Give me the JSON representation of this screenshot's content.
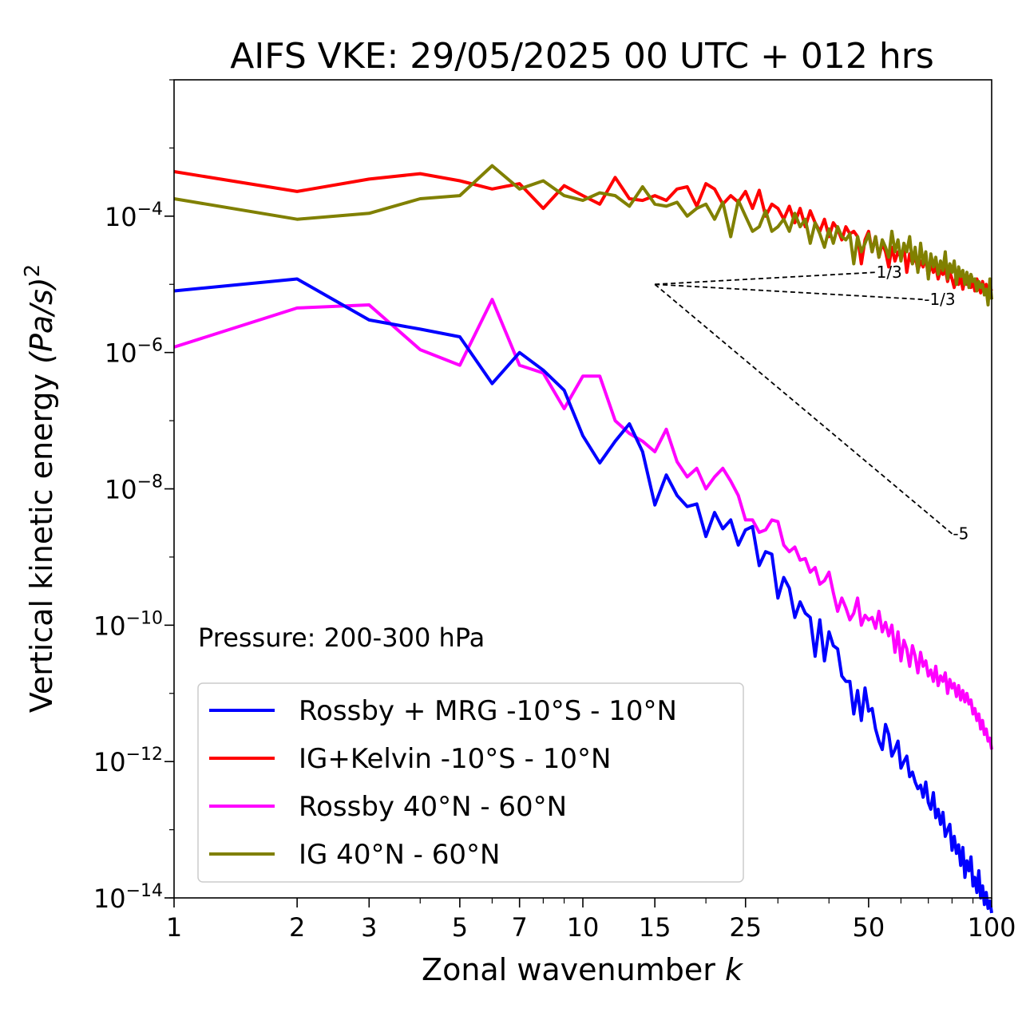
{
  "chart_data": {
    "type": "line",
    "title": "AIFS VKE: 29/05/2025 00 UTC + 012 hrs",
    "xlabel": "Zonal wavenumber",
    "xlabel_var": "k",
    "ylabel": "Vertical kinetic energy",
    "ylabel_unit": "(Pa/s)",
    "ylabel_sup": "2",
    "x_scale": "log",
    "y_scale": "log",
    "xlim": [
      1,
      100
    ],
    "ylim": [
      1e-14,
      0.01
    ],
    "x_ticks": [
      1,
      2,
      3,
      5,
      7,
      10,
      15,
      25,
      50,
      100
    ],
    "x_tick_labels": [
      "1",
      "2",
      "3",
      "5",
      "7",
      "10",
      "15",
      "25",
      "50",
      "100"
    ],
    "y_ticks": [
      1e-14,
      1e-12,
      1e-10,
      1e-08,
      1e-06,
      0.0001
    ],
    "y_tick_exponents": [
      "−14",
      "−12",
      "−10",
      "−8",
      "−6",
      "−4"
    ],
    "y_tick_base": "10",
    "annotation": "Pressure: 200-300 hPa",
    "legend_position": "lower-left",
    "series": [
      {
        "name": "Rossby + MRG -10°S - 10°N",
        "color": "#0000ff",
        "x": [
          1,
          2,
          3,
          4,
          5,
          6,
          7,
          8,
          9,
          10,
          11,
          12,
          13,
          14,
          15,
          16,
          17,
          18,
          19,
          20,
          21,
          22,
          23,
          24,
          25,
          26,
          27,
          28,
          29,
          30,
          31,
          32,
          33,
          34,
          35,
          36,
          37,
          38,
          39,
          40,
          41,
          42,
          43,
          44,
          45,
          46,
          47,
          48,
          49,
          50,
          51,
          52,
          53,
          54,
          55,
          56,
          57,
          58,
          59,
          60,
          61,
          62,
          63,
          64,
          65,
          66,
          67,
          68,
          69,
          70,
          71,
          72,
          73,
          74,
          75,
          76,
          77,
          78,
          79,
          80,
          81,
          82,
          83,
          84,
          85,
          86,
          87,
          88,
          89,
          90,
          91,
          92,
          93,
          94,
          95,
          96,
          97,
          98,
          99,
          100
        ],
        "values": [
          8e-06,
          1.2e-05,
          3e-06,
          2.2e-06,
          1.7e-06,
          3.5e-07,
          1e-06,
          5.5e-07,
          2.8e-07,
          6e-08,
          2.4e-08,
          5e-08,
          9e-08,
          3.5e-08,
          5.8e-09,
          1.6e-08,
          8e-09,
          5.5e-09,
          6e-09,
          2e-09,
          4.5e-09,
          2.6e-09,
          3.5e-09,
          1.5e-09,
          2.5e-09,
          2.8e-09,
          7.5e-10,
          1.2e-09,
          1.1e-09,
          2.5e-10,
          5e-10,
          3.5e-10,
          1.3e-10,
          2.2e-10,
          1.5e-10,
          1.3e-10,
          3.5e-11,
          1.2e-10,
          3e-11,
          8e-11,
          5e-11,
          4.5e-11,
          1.8e-11,
          1.5e-11,
          1.5e-11,
          5e-12,
          1.1e-11,
          4e-12,
          1.2e-11,
          5.5e-12,
          6e-12,
          3e-12,
          2e-12,
          1.5e-12,
          3.5e-12,
          2.5e-12,
          1.2e-12,
          1.5e-12,
          2e-12,
          8e-13,
          1e-12,
          1.2e-12,
          6e-13,
          7e-13,
          5e-13,
          4e-13,
          4.5e-13,
          3e-13,
          5e-13,
          2.5e-13,
          2e-13,
          3.5e-13,
          1.5e-13,
          2e-13,
          1.2e-13,
          1.8e-13,
          8e-14,
          1e-13,
          1.2e-13,
          5e-14,
          8e-14,
          4.5e-14,
          6e-14,
          3e-14,
          5.5e-14,
          2e-14,
          3.5e-14,
          2.5e-14,
          4e-14,
          1.5e-14,
          2e-14,
          1.2e-14,
          2.5e-14,
          1e-14,
          1.5e-14,
          8e-15,
          1.2e-14,
          7e-15,
          9e-15,
          6e-15
        ]
      },
      {
        "name": "IG+Kelvin -10°S - 10°N",
        "color": "#ff0000",
        "x": [
          1,
          2,
          3,
          4,
          5,
          6,
          7,
          8,
          9,
          10,
          11,
          12,
          13,
          14,
          15,
          16,
          17,
          18,
          19,
          20,
          21,
          22,
          23,
          24,
          25,
          26,
          27,
          28,
          29,
          30,
          31,
          32,
          33,
          34,
          35,
          36,
          37,
          38,
          39,
          40,
          41,
          42,
          43,
          44,
          45,
          46,
          47,
          48,
          49,
          50,
          51,
          52,
          53,
          54,
          55,
          56,
          57,
          58,
          59,
          60,
          61,
          62,
          63,
          64,
          65,
          66,
          67,
          68,
          69,
          70,
          71,
          72,
          73,
          74,
          75,
          76,
          77,
          78,
          79,
          80,
          81,
          82,
          83,
          84,
          85,
          86,
          87,
          88,
          89,
          90,
          91,
          92,
          93,
          94,
          95,
          96,
          97,
          98,
          99,
          100
        ],
        "values": [
          0.00045,
          0.00023,
          0.00035,
          0.00042,
          0.00033,
          0.00025,
          0.0003,
          0.00013,
          0.00028,
          0.0002,
          0.00015,
          0.00037,
          0.00018,
          0.00017,
          0.0002,
          0.00017,
          0.00025,
          0.00027,
          0.00014,
          0.0003,
          0.00025,
          0.00015,
          0.0002,
          0.00016,
          0.00023,
          0.00013,
          0.00024,
          0.0001,
          0.00015,
          0.00013,
          9e-05,
          0.00014,
          8e-05,
          0.00013,
          7e-05,
          0.00012,
          8e-05,
          6e-05,
          9e-05,
          5e-05,
          8e-05,
          6.5e-05,
          4.5e-05,
          7e-05,
          5.5e-05,
          6e-05,
          5e-05,
          2e-05,
          4.5e-05,
          6e-05,
          3e-05,
          5e-05,
          2.5e-05,
          4e-05,
          3e-05,
          1.8e-05,
          3.5e-05,
          2.2e-05,
          3e-05,
          2.5e-05,
          3.5e-05,
          1.5e-05,
          2.8e-05,
          2e-05,
          2.6e-05,
          1.6e-05,
          2.2e-05,
          1.8e-05,
          2.5e-05,
          1.3e-05,
          2e-05,
          1.5e-05,
          1.8e-05,
          1.2e-05,
          1.6e-05,
          1.4e-05,
          1.7e-05,
          1.1e-05,
          1.5e-05,
          1.2e-05,
          9e-06,
          1.4e-05,
          1e-05,
          1.3e-05,
          8.5e-06,
          1.2e-05,
          1e-05,
          1.3e-05,
          9e-06,
          1.1e-05,
          8e-06,
          1.2e-05,
          9.5e-06,
          7.5e-06,
          1.1e-05,
          8e-06,
          1e-05,
          7e-06,
          9e-06,
          8e-06
        ]
      },
      {
        "name": "Rossby 40°N - 60°N",
        "color": "#ff00ff",
        "x": [
          1,
          2,
          3,
          4,
          5,
          6,
          7,
          8,
          9,
          10,
          11,
          12,
          13,
          14,
          15,
          16,
          17,
          18,
          19,
          20,
          21,
          22,
          23,
          24,
          25,
          26,
          27,
          28,
          29,
          30,
          31,
          32,
          33,
          34,
          35,
          36,
          37,
          38,
          39,
          40,
          41,
          42,
          43,
          44,
          45,
          46,
          47,
          48,
          49,
          50,
          51,
          52,
          53,
          54,
          55,
          56,
          57,
          58,
          59,
          60,
          61,
          62,
          63,
          64,
          65,
          66,
          67,
          68,
          69,
          70,
          71,
          72,
          73,
          74,
          75,
          76,
          77,
          78,
          79,
          80,
          81,
          82,
          83,
          84,
          85,
          86,
          87,
          88,
          89,
          90,
          91,
          92,
          93,
          94,
          95,
          96,
          97,
          98,
          99,
          100
        ],
        "values": [
          1.2e-06,
          4.5e-06,
          5e-06,
          1.1e-06,
          6.5e-07,
          6e-06,
          6.5e-07,
          5e-07,
          1.5e-07,
          4.5e-07,
          4.5e-07,
          1e-07,
          6.5e-08,
          5e-08,
          3.5e-08,
          7.5e-08,
          2.5e-08,
          1.5e-08,
          2e-08,
          1e-08,
          1.5e-08,
          2e-08,
          1.3e-08,
          8e-09,
          3.5e-09,
          3.5e-09,
          2.3e-09,
          2.5e-09,
          3.5e-09,
          3.3e-09,
          1.5e-09,
          1.2e-09,
          1.4e-09,
          9e-10,
          9.5e-10,
          6e-10,
          7e-10,
          4e-10,
          4.5e-10,
          6e-10,
          3e-10,
          1.6e-10,
          2.5e-10,
          1.8e-10,
          1.2e-10,
          1.5e-10,
          2.5e-10,
          1e-10,
          1.4e-10,
          1.2e-10,
          1.3e-10,
          9e-11,
          1.6e-10,
          8e-11,
          1.1e-10,
          7e-11,
          1e-10,
          4e-11,
          8e-11,
          3e-11,
          6e-11,
          4.5e-11,
          2.5e-11,
          5e-11,
          3.5e-11,
          2e-11,
          4e-11,
          2.5e-11,
          3e-11,
          1.8e-11,
          2.2e-11,
          1.5e-11,
          2.5e-11,
          1.3e-11,
          1.8e-11,
          1.5e-11,
          2e-11,
          1e-11,
          1.6e-11,
          1.2e-11,
          1.4e-11,
          9e-12,
          1.3e-11,
          8e-12,
          1.1e-11,
          7.5e-12,
          1e-11,
          7e-12,
          8e-12,
          5e-12,
          6e-12,
          4e-12,
          5e-12,
          3e-12,
          4e-12,
          2.5e-12,
          3e-12,
          2e-12,
          2.2e-12,
          1.5e-12
        ]
      },
      {
        "name": "IG 40°N - 60°N",
        "color": "#808000",
        "x": [
          1,
          2,
          3,
          4,
          5,
          6,
          7,
          8,
          9,
          10,
          11,
          12,
          13,
          14,
          15,
          16,
          17,
          18,
          19,
          20,
          21,
          22,
          23,
          24,
          25,
          26,
          27,
          28,
          29,
          30,
          31,
          32,
          33,
          34,
          35,
          36,
          37,
          38,
          39,
          40,
          41,
          42,
          43,
          44,
          45,
          46,
          47,
          48,
          49,
          50,
          51,
          52,
          53,
          54,
          55,
          56,
          57,
          58,
          59,
          60,
          61,
          62,
          63,
          64,
          65,
          66,
          67,
          68,
          69,
          70,
          71,
          72,
          73,
          74,
          75,
          76,
          77,
          78,
          79,
          80,
          81,
          82,
          83,
          84,
          85,
          86,
          87,
          88,
          89,
          90,
          91,
          92,
          93,
          94,
          95,
          96,
          97,
          98,
          99,
          100
        ],
        "values": [
          0.00018,
          9e-05,
          0.00011,
          0.00018,
          0.0002,
          0.00055,
          0.00025,
          0.00033,
          0.0002,
          0.00017,
          0.00022,
          0.0002,
          0.00014,
          0.00027,
          0.00015,
          0.00014,
          0.00016,
          0.0001,
          0.00013,
          0.00015,
          9e-05,
          0.00016,
          5e-05,
          0.00017,
          0.0001,
          6e-05,
          7e-05,
          0.00012,
          6e-05,
          7e-05,
          9e-05,
          6e-05,
          0.00011,
          7e-05,
          9e-05,
          4e-05,
          8e-05,
          5.5e-05,
          3.5e-05,
          6.5e-05,
          4e-05,
          7e-05,
          5e-05,
          4.5e-05,
          5.5e-05,
          2e-05,
          5e-05,
          3e-05,
          4e-05,
          5.5e-05,
          3e-05,
          5e-05,
          2.5e-05,
          4.5e-05,
          3.5e-05,
          2.5e-05,
          6e-05,
          3e-05,
          4.5e-05,
          2.2e-05,
          4e-05,
          3e-05,
          5e-05,
          2e-05,
          3.5e-05,
          1.5e-05,
          4e-05,
          2e-05,
          3e-05,
          1.2e-05,
          2.8e-05,
          1.8e-05,
          2.5e-05,
          1.4e-05,
          2.2e-05,
          1.6e-05,
          3e-05,
          1.2e-05,
          2e-05,
          1.5e-05,
          2.2e-05,
          1e-05,
          1.8e-05,
          1.3e-05,
          1.6e-05,
          1e-05,
          1.5e-05,
          9e-06,
          1.4e-05,
          1.1e-05,
          1.2e-05,
          8e-06,
          1.1e-05,
          9e-06,
          1e-05,
          7e-06,
          8.5e-06,
          5e-06,
          1.2e-05,
          6e-06
        ]
      }
    ],
    "reference_lines": [
      {
        "label": "1/3",
        "x": [
          15,
          52
        ],
        "y": [
          1e-05,
          1.5e-05
        ]
      },
      {
        "label": "-1/3",
        "x": [
          15,
          68
        ],
        "y": [
          1e-05,
          6e-06
        ]
      },
      {
        "label": "-5",
        "x": [
          15,
          80
        ],
        "y": [
          1e-05,
          2.2e-09
        ]
      }
    ]
  }
}
